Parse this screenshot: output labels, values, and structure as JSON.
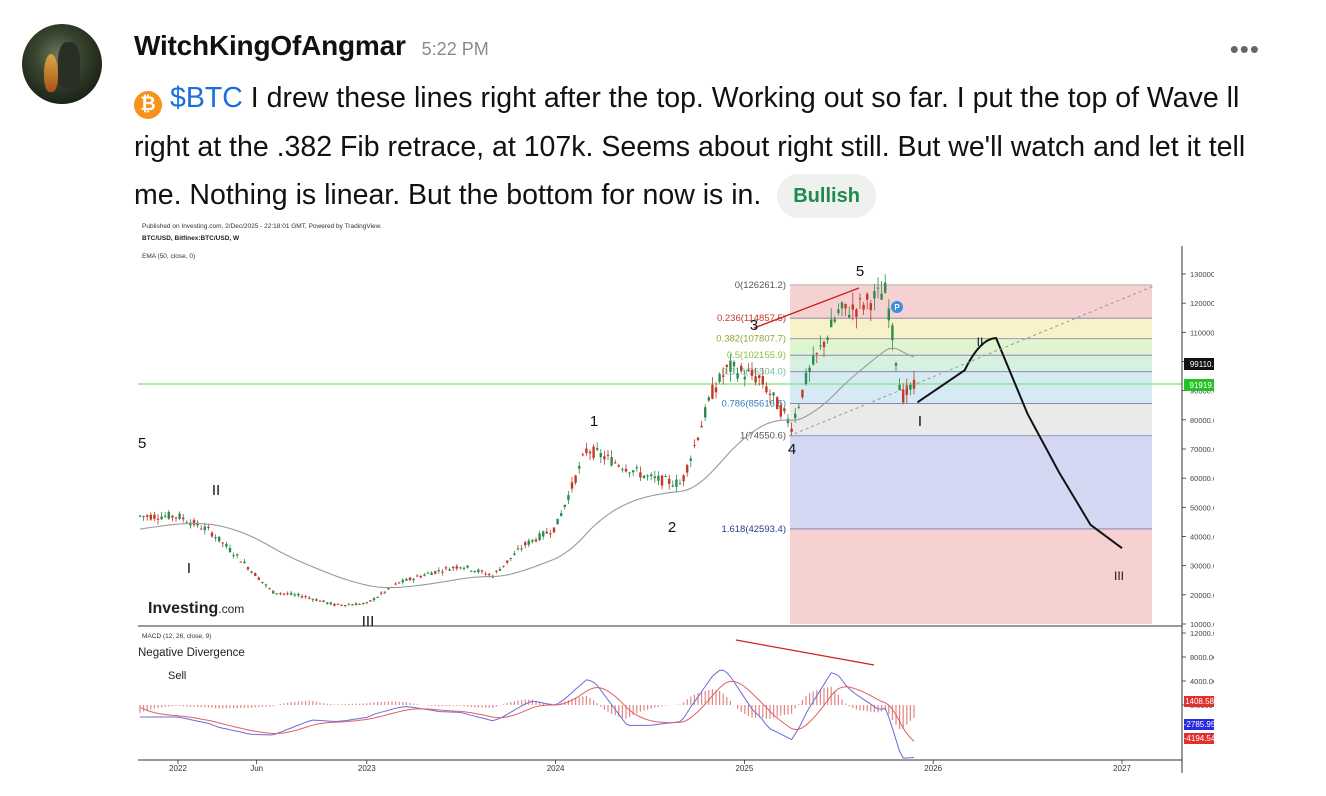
{
  "post": {
    "username": "WitchKingOfAngmar",
    "timestamp": "5:22 PM",
    "more_label": "•••",
    "coin_symbol": "₿",
    "cashtag": "$BTC",
    "text_1": " I drew these lines right after the top. Working out so far. I put the top of Wave ll right at the .382 Fib retrace, at 107k.  Seems about right still. But we'll watch and let it tell me.  Nothing is linear. But the bottom for now is in. ",
    "sentiment": "Bullish"
  },
  "chart_meta": {
    "published": "Published on Investing.com, 2/Dec/2025 - 22:18:01 GMT, Powered by TradingView.",
    "symbol": "BTC/USD, Bitfinex:BTC/USD, W",
    "ema": "EMA (50, close, 0)",
    "logo": "Investing",
    "logo_suffix": ".com",
    "macd_label": "MACD (12, 26, close, 9)",
    "annotation_divergence": "Negative Divergence",
    "annotation_sell": "Sell",
    "price_badge_1": "99110.4",
    "price_badge_2": "91919.0",
    "macd_badge_1": "1408.5852",
    "macd_badge_2": "-2785.9565",
    "macd_badge_3": "-4194.5418",
    "colors": {
      "up": "#2e8b4e",
      "down": "#c0392b",
      "ema": "#9a9a9a",
      "macd": "#6b6bd8",
      "signal": "#e06060",
      "fib_green": "#6ee06e"
    }
  },
  "chart_data": {
    "type": "line",
    "title": "",
    "xlabel": "",
    "ylabel": "",
    "x_ticks": [
      "2022",
      "Jun",
      "2023",
      "2024",
      "2025",
      "2026",
      "2027"
    ],
    "y_ticks": [
      "130000.0",
      "120000.0",
      "110000.0",
      "100000.0",
      "90000.0",
      "80000.0",
      "70000.0",
      "60000.0",
      "50000.0",
      "40000.0",
      "30000.0",
      "20000.0",
      "10000.0"
    ],
    "ylim": [
      10000,
      135000
    ],
    "macd_ticks": [
      "12000.0000",
      "8000.0000",
      "4000.0000",
      "0.0000"
    ],
    "fib_levels": [
      {
        "ratio": "0",
        "label": "0(126261.2)",
        "price": 126261.2
      },
      {
        "ratio": "0.236",
        "label": "0.236(114857.5)",
        "price": 114857.5
      },
      {
        "ratio": "0.382",
        "label": "0.382(107807.7)",
        "price": 107807.7
      },
      {
        "ratio": "0.5",
        "label": "0.5(102155.9)",
        "price": 102155.9
      },
      {
        "ratio": "0.618",
        "label": "0.618(96504.0)",
        "price": 96504.0
      },
      {
        "ratio": "0.786",
        "label": "0.786(85616.5)",
        "price": 85616.5
      },
      {
        "ratio": "1",
        "label": "1(74550.6)",
        "price": 74550.6
      },
      {
        "ratio": "1.618",
        "label": "1.618(42593.4)",
        "price": 42593.4
      }
    ],
    "wave_labels": [
      "5",
      "II",
      "I",
      "III",
      "1",
      "2",
      "3",
      "4",
      "5",
      "I",
      "II",
      "III"
    ],
    "series": [
      {
        "name": "",
        "x": [
          "2022-01",
          "2022-03",
          "2022-05",
          "2022-07",
          "2022-09",
          "2022-11",
          "2023-01",
          "2023-03",
          "2023-05",
          "2023-07",
          "2023-09",
          "2023-11",
          "2024-01",
          "2024-03",
          "2024-05",
          "2024-07",
          "2024-09",
          "2024-11",
          "2024-12",
          "2025-02",
          "2025-04",
          "2025-05",
          "2025-07",
          "2025-08",
          "2025-10",
          "2025-11",
          "2025-12"
        ],
        "values": [
          47000,
          42000,
          32000,
          21000,
          19500,
          16500,
          17000,
          24000,
          27500,
          30000,
          26500,
          37000,
          43000,
          70000,
          65000,
          60000,
          58000,
          90000,
          98000,
          94000,
          78000,
          95000,
          117000,
          118000,
          124000,
          88000,
          91900
        ]
      },
      {
        "name": "",
        "x": [
          "2025-12",
          "2026-03",
          "2026-05",
          "2026-07",
          "2026-09",
          "2026-11",
          "2027-01"
        ],
        "values": [
          86000,
          97000,
          108000,
          82000,
          62000,
          44000,
          36000
        ]
      }
    ]
  }
}
